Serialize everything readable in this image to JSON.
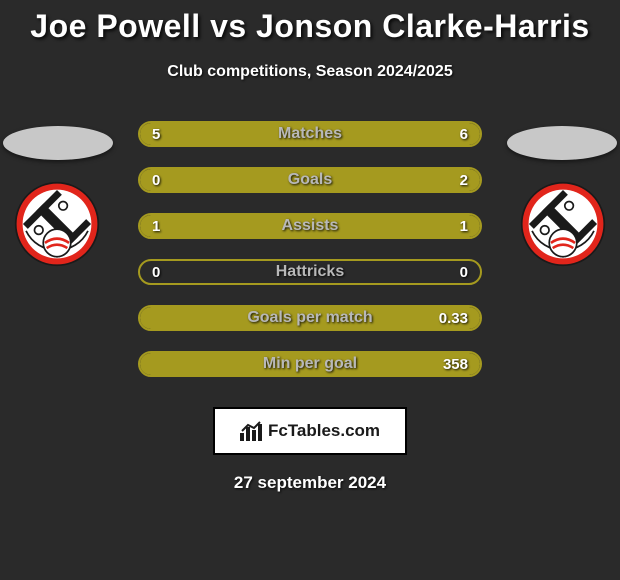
{
  "title": "Joe Powell vs Jonson Clarke-Harris",
  "subtitle": "Club competitions, Season 2024/2025",
  "date": "27 september 2024",
  "brand": "FcTables.com",
  "colors": {
    "background": "#2a2a2a",
    "accent": "#a59a1f",
    "title_text": "#ffffff",
    "bar_label": "#b8b8b8",
    "bar_value": "#ffffff",
    "oval": "#c8c8c8",
    "footer_bg": "#ffffff",
    "footer_border": "#000000"
  },
  "badge": {
    "outer": "#e1251b",
    "inner": "#ffffff",
    "stroke": "#1a1a1a",
    "stripe": "#e1251b"
  },
  "stats": [
    {
      "label": "Matches",
      "left_val": "5",
      "right_val": "6",
      "left_pct": 45,
      "right_pct": 55,
      "show_left": true,
      "show_right": true
    },
    {
      "label": "Goals",
      "left_val": "0",
      "right_val": "2",
      "left_pct": 0,
      "right_pct": 100,
      "show_left": true,
      "show_right": true
    },
    {
      "label": "Assists",
      "left_val": "1",
      "right_val": "1",
      "left_pct": 50,
      "right_pct": 50,
      "show_left": true,
      "show_right": true
    },
    {
      "label": "Hattricks",
      "left_val": "0",
      "right_val": "0",
      "left_pct": 0,
      "right_pct": 0,
      "show_left": true,
      "show_right": true
    },
    {
      "label": "Goals per match",
      "left_val": "",
      "right_val": "0.33",
      "left_pct": 0,
      "right_pct": 100,
      "show_left": false,
      "show_right": true
    },
    {
      "label": "Min per goal",
      "left_val": "",
      "right_val": "358",
      "left_pct": 0,
      "right_pct": 100,
      "show_left": false,
      "show_right": true
    }
  ]
}
